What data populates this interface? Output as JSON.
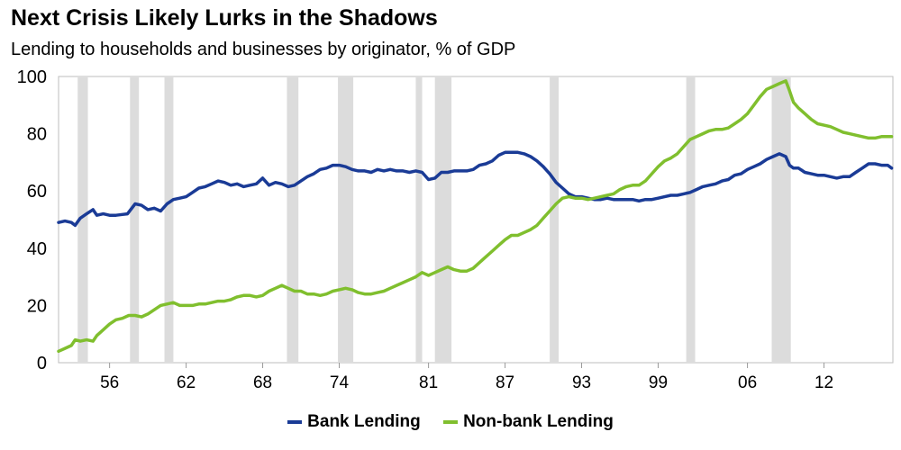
{
  "title": "Next Crisis Likely Lurks in the Shadows",
  "subtitle": "Lending to households and businesses by originator, % of GDP",
  "chart_data": {
    "type": "line",
    "ylim": [
      0,
      100
    ],
    "xlim": [
      1952,
      2017.4
    ],
    "yticks": [
      0,
      20,
      40,
      60,
      80,
      100
    ],
    "xticks": [
      {
        "value": 1956,
        "label": "56"
      },
      {
        "value": 1962,
        "label": "62"
      },
      {
        "value": 1968,
        "label": "68"
      },
      {
        "value": 1974,
        "label": "74"
      },
      {
        "value": 1981,
        "label": "81"
      },
      {
        "value": 1987,
        "label": "87"
      },
      {
        "value": 1993,
        "label": "93"
      },
      {
        "value": 1999,
        "label": "99"
      },
      {
        "value": 2006,
        "label": "06"
      },
      {
        "value": 2012,
        "label": "12"
      }
    ],
    "grid": false,
    "legend_position": "bottom",
    "recessions": [
      [
        1953.5,
        1954.3
      ],
      [
        1957.6,
        1958.3
      ],
      [
        1960.3,
        1961.0
      ],
      [
        1969.9,
        1970.8
      ],
      [
        1973.9,
        1975.1
      ],
      [
        1980.0,
        1980.5
      ],
      [
        1981.5,
        1982.8
      ],
      [
        1990.5,
        1991.2
      ],
      [
        2001.2,
        2001.9
      ],
      [
        2007.9,
        2009.4
      ]
    ],
    "series": [
      {
        "name": "Bank Lending",
        "color": "#1a3b96",
        "points": [
          [
            1952.0,
            49
          ],
          [
            1952.5,
            49.5
          ],
          [
            1953.0,
            49
          ],
          [
            1953.3,
            48
          ],
          [
            1953.7,
            50.5
          ],
          [
            1954.2,
            52
          ],
          [
            1954.7,
            53.5
          ],
          [
            1955.0,
            51.5
          ],
          [
            1955.5,
            52
          ],
          [
            1956.0,
            51.5
          ],
          [
            1956.5,
            51.5
          ],
          [
            1957.0,
            51.8
          ],
          [
            1957.4,
            52
          ],
          [
            1958.0,
            55.5
          ],
          [
            1958.5,
            55
          ],
          [
            1959.0,
            53.5
          ],
          [
            1959.5,
            54
          ],
          [
            1960.0,
            53
          ],
          [
            1960.5,
            55.5
          ],
          [
            1961.0,
            57
          ],
          [
            1961.5,
            57.5
          ],
          [
            1962.0,
            58
          ],
          [
            1962.5,
            59.5
          ],
          [
            1963.0,
            61
          ],
          [
            1963.5,
            61.5
          ],
          [
            1964.0,
            62.5
          ],
          [
            1964.5,
            63.5
          ],
          [
            1965.0,
            63
          ],
          [
            1965.5,
            62
          ],
          [
            1966.0,
            62.5
          ],
          [
            1966.5,
            61.5
          ],
          [
            1967.0,
            62
          ],
          [
            1967.5,
            62.5
          ],
          [
            1968.0,
            64.5
          ],
          [
            1968.5,
            62
          ],
          [
            1969.0,
            63
          ],
          [
            1969.5,
            62.5
          ],
          [
            1970.0,
            61.5
          ],
          [
            1970.5,
            62
          ],
          [
            1971.0,
            63.5
          ],
          [
            1971.5,
            65
          ],
          [
            1972.0,
            66
          ],
          [
            1972.5,
            67.5
          ],
          [
            1973.0,
            68
          ],
          [
            1973.5,
            69
          ],
          [
            1974.0,
            69
          ],
          [
            1974.5,
            68.5
          ],
          [
            1975.0,
            67.5
          ],
          [
            1975.5,
            67
          ],
          [
            1976.0,
            67
          ],
          [
            1976.5,
            66.5
          ],
          [
            1977.0,
            67.5
          ],
          [
            1977.5,
            67
          ],
          [
            1978.0,
            67.5
          ],
          [
            1978.5,
            67
          ],
          [
            1979.0,
            67
          ],
          [
            1979.5,
            66.5
          ],
          [
            1980.0,
            67
          ],
          [
            1980.5,
            66.5
          ],
          [
            1981.0,
            64
          ],
          [
            1981.5,
            64.5
          ],
          [
            1982.0,
            66.5
          ],
          [
            1982.5,
            66.5
          ],
          [
            1983.0,
            67
          ],
          [
            1983.5,
            67
          ],
          [
            1984.0,
            67
          ],
          [
            1984.5,
            67.5
          ],
          [
            1985.0,
            69
          ],
          [
            1985.5,
            69.5
          ],
          [
            1986.0,
            70.5
          ],
          [
            1986.5,
            72.5
          ],
          [
            1987.0,
            73.5
          ],
          [
            1987.5,
            73.5
          ],
          [
            1988.0,
            73.5
          ],
          [
            1988.5,
            73
          ],
          [
            1989.0,
            72
          ],
          [
            1989.5,
            70.5
          ],
          [
            1990.0,
            68.5
          ],
          [
            1990.5,
            66
          ],
          [
            1991.0,
            63
          ],
          [
            1991.5,
            61
          ],
          [
            1992.0,
            59
          ],
          [
            1992.5,
            58
          ],
          [
            1993.0,
            58
          ],
          [
            1993.5,
            57.5
          ],
          [
            1994.0,
            57
          ],
          [
            1994.5,
            57
          ],
          [
            1995.0,
            57.5
          ],
          [
            1995.5,
            57
          ],
          [
            1996.0,
            57
          ],
          [
            1996.5,
            57
          ],
          [
            1997.0,
            57
          ],
          [
            1997.5,
            56.5
          ],
          [
            1998.0,
            57
          ],
          [
            1998.5,
            57
          ],
          [
            1999.0,
            57.5
          ],
          [
            1999.5,
            58
          ],
          [
            2000.0,
            58.5
          ],
          [
            2000.5,
            58.5
          ],
          [
            2001.0,
            59
          ],
          [
            2001.5,
            59.5
          ],
          [
            2002.0,
            60.5
          ],
          [
            2002.5,
            61.5
          ],
          [
            2003.0,
            62
          ],
          [
            2003.5,
            62.5
          ],
          [
            2004.0,
            63.5
          ],
          [
            2004.5,
            64
          ],
          [
            2005.0,
            65.5
          ],
          [
            2005.5,
            66
          ],
          [
            2006.0,
            67.5
          ],
          [
            2006.5,
            68.5
          ],
          [
            2007.0,
            69.5
          ],
          [
            2007.5,
            71
          ],
          [
            2008.0,
            72
          ],
          [
            2008.5,
            73
          ],
          [
            2009.0,
            72
          ],
          [
            2009.3,
            69
          ],
          [
            2009.6,
            68
          ],
          [
            2010.0,
            68
          ],
          [
            2010.5,
            66.5
          ],
          [
            2011.0,
            66
          ],
          [
            2011.5,
            65.5
          ],
          [
            2012.0,
            65.5
          ],
          [
            2012.5,
            65
          ],
          [
            2013.0,
            64.5
          ],
          [
            2013.5,
            65
          ],
          [
            2014.0,
            65
          ],
          [
            2014.5,
            66.5
          ],
          [
            2015.0,
            68
          ],
          [
            2015.5,
            69.5
          ],
          [
            2016.0,
            69.5
          ],
          [
            2016.5,
            69
          ],
          [
            2017.0,
            69
          ],
          [
            2017.3,
            68
          ]
        ]
      },
      {
        "name": "Non-bank Lending",
        "color": "#80bf2e",
        "points": [
          [
            1952.0,
            4
          ],
          [
            1952.5,
            5
          ],
          [
            1953.0,
            6
          ],
          [
            1953.3,
            8
          ],
          [
            1953.7,
            7.5
          ],
          [
            1954.2,
            8
          ],
          [
            1954.7,
            7.5
          ],
          [
            1955.0,
            9.5
          ],
          [
            1955.5,
            11.5
          ],
          [
            1956.0,
            13.5
          ],
          [
            1956.5,
            15
          ],
          [
            1957.0,
            15.5
          ],
          [
            1957.5,
            16.5
          ],
          [
            1958.0,
            16.5
          ],
          [
            1958.5,
            16
          ],
          [
            1959.0,
            17
          ],
          [
            1959.5,
            18.5
          ],
          [
            1960.0,
            20
          ],
          [
            1960.5,
            20.5
          ],
          [
            1961.0,
            21
          ],
          [
            1961.5,
            20
          ],
          [
            1962.0,
            20
          ],
          [
            1962.5,
            20
          ],
          [
            1963.0,
            20.5
          ],
          [
            1963.5,
            20.5
          ],
          [
            1964.0,
            21
          ],
          [
            1964.5,
            21.5
          ],
          [
            1965.0,
            21.5
          ],
          [
            1965.5,
            22
          ],
          [
            1966.0,
            23
          ],
          [
            1966.5,
            23.5
          ],
          [
            1967.0,
            23.5
          ],
          [
            1967.5,
            23
          ],
          [
            1968.0,
            23.5
          ],
          [
            1968.5,
            25
          ],
          [
            1969.0,
            26
          ],
          [
            1969.5,
            27
          ],
          [
            1970.0,
            26
          ],
          [
            1970.5,
            25
          ],
          [
            1971.0,
            25
          ],
          [
            1971.5,
            24
          ],
          [
            1972.0,
            24
          ],
          [
            1972.5,
            23.5
          ],
          [
            1973.0,
            24
          ],
          [
            1973.5,
            25
          ],
          [
            1974.0,
            25.5
          ],
          [
            1974.5,
            26
          ],
          [
            1975.0,
            25.5
          ],
          [
            1975.5,
            24.5
          ],
          [
            1976.0,
            24
          ],
          [
            1976.5,
            24
          ],
          [
            1977.0,
            24.5
          ],
          [
            1977.5,
            25
          ],
          [
            1978.0,
            26
          ],
          [
            1978.5,
            27
          ],
          [
            1979.0,
            28
          ],
          [
            1979.5,
            29
          ],
          [
            1980.0,
            30
          ],
          [
            1980.5,
            31.5
          ],
          [
            1981.0,
            30.5
          ],
          [
            1981.5,
            31.5
          ],
          [
            1982.0,
            32.5
          ],
          [
            1982.5,
            33.5
          ],
          [
            1983.0,
            32.5
          ],
          [
            1983.5,
            32
          ],
          [
            1984.0,
            32
          ],
          [
            1984.5,
            33
          ],
          [
            1985.0,
            35
          ],
          [
            1985.5,
            37
          ],
          [
            1986.0,
            39
          ],
          [
            1986.5,
            41
          ],
          [
            1987.0,
            43
          ],
          [
            1987.5,
            44.5
          ],
          [
            1988.0,
            44.5
          ],
          [
            1988.5,
            45.5
          ],
          [
            1989.0,
            46.5
          ],
          [
            1989.5,
            48
          ],
          [
            1990.0,
            50.5
          ],
          [
            1990.5,
            53
          ],
          [
            1991.0,
            55.5
          ],
          [
            1991.5,
            57.5
          ],
          [
            1992.0,
            58
          ],
          [
            1992.5,
            57.5
          ],
          [
            1993.0,
            57.5
          ],
          [
            1993.5,
            57
          ],
          [
            1994.0,
            57.5
          ],
          [
            1994.5,
            58
          ],
          [
            1995.0,
            58.5
          ],
          [
            1995.5,
            59
          ],
          [
            1996.0,
            60.5
          ],
          [
            1996.5,
            61.5
          ],
          [
            1997.0,
            62
          ],
          [
            1997.5,
            62
          ],
          [
            1998.0,
            63.5
          ],
          [
            1998.5,
            66
          ],
          [
            1999.0,
            68.5
          ],
          [
            1999.5,
            70.5
          ],
          [
            2000.0,
            71.5
          ],
          [
            2000.5,
            73
          ],
          [
            2001.0,
            75.5
          ],
          [
            2001.5,
            78
          ],
          [
            2002.0,
            79
          ],
          [
            2002.5,
            80
          ],
          [
            2003.0,
            81
          ],
          [
            2003.5,
            81.5
          ],
          [
            2004.0,
            81.5
          ],
          [
            2004.5,
            82
          ],
          [
            2005.0,
            83.5
          ],
          [
            2005.5,
            85
          ],
          [
            2006.0,
            87
          ],
          [
            2006.5,
            90
          ],
          [
            2007.0,
            93
          ],
          [
            2007.5,
            95.5
          ],
          [
            2008.0,
            96.5
          ],
          [
            2008.5,
            97.5
          ],
          [
            2009.0,
            98.5
          ],
          [
            2009.3,
            95
          ],
          [
            2009.6,
            91
          ],
          [
            2010.0,
            89
          ],
          [
            2010.5,
            87
          ],
          [
            2011.0,
            85
          ],
          [
            2011.5,
            83.5
          ],
          [
            2012.0,
            83
          ],
          [
            2012.5,
            82.5
          ],
          [
            2013.0,
            81.5
          ],
          [
            2013.5,
            80.5
          ],
          [
            2014.0,
            80
          ],
          [
            2014.5,
            79.5
          ],
          [
            2015.0,
            79
          ],
          [
            2015.5,
            78.5
          ],
          [
            2016.0,
            78.5
          ],
          [
            2016.5,
            79
          ],
          [
            2017.0,
            79
          ],
          [
            2017.3,
            79
          ]
        ]
      }
    ]
  }
}
